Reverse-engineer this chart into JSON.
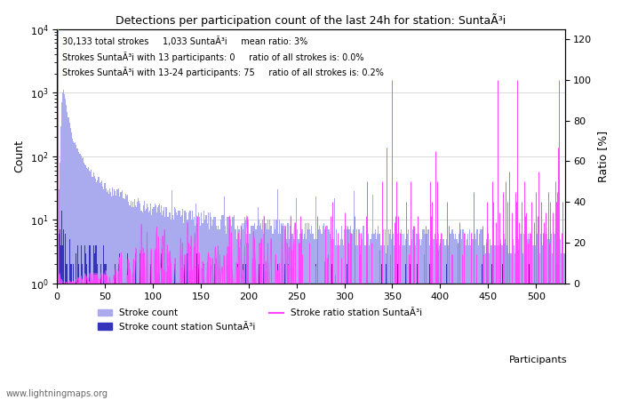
{
  "title": "Detections per participation count of the last 24h for station: SuntaÃ³i",
  "annotation_line1": "30,133 total strokes     1,033 SuntaÃ³i     mean ratio: 3%",
  "annotation_line2": "Strokes SuntaÃ³i with 13 participants: 0     ratio of all strokes is: 0.0%",
  "annotation_line3": "Strokes SuntaÃ³i with 13-24 participants: 75     ratio of all strokes is: 0.2%",
  "ylabel_left": "Count",
  "ylabel_right": "Ratio [%]",
  "xlabel": "Participants",
  "xlim": [
    0,
    530
  ],
  "ylim_log": [
    1,
    10000
  ],
  "ylim_ratio": [
    0,
    125
  ],
  "x_ticks": [
    0,
    50,
    100,
    150,
    200,
    250,
    300,
    350,
    400,
    450,
    500
  ],
  "watermark": "www.lightningmaps.org",
  "bar_color_total": "#aaaaee",
  "bar_color_station": "#3333bb",
  "ratio_line_color": "#ff44ff",
  "figsize": [
    7.0,
    4.5
  ],
  "dpi": 100
}
